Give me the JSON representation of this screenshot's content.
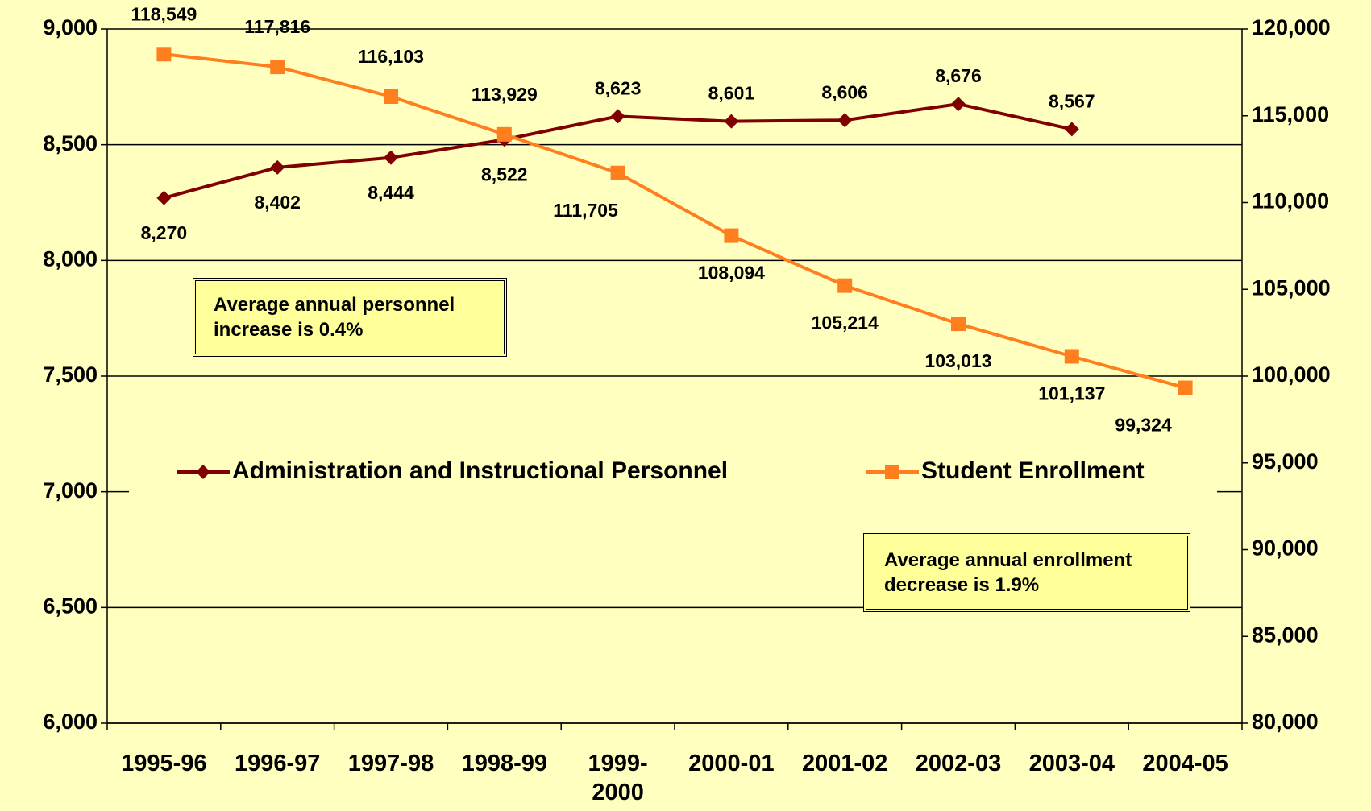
{
  "chart_data": {
    "type": "line",
    "categories": [
      "1995-96",
      "1996-97",
      "1997-98",
      "1998-99",
      "1999-2000",
      "2000-01",
      "2001-02",
      "2002-03",
      "2003-04",
      "2004-05"
    ],
    "series": [
      {
        "name": "Administration and Instructional Personnel",
        "color": "#800000",
        "values": [
          8270,
          8402,
          8444,
          8522,
          8623,
          8601,
          8606,
          8676,
          8567,
          null
        ],
        "value_labels": [
          "8,270",
          "8,402",
          "8,444",
          "8,522",
          "8,623",
          "8,601",
          "8,606",
          "8,676",
          "8,567",
          null
        ]
      },
      {
        "name": "Student Enrollment",
        "color": "#ff7f1f",
        "axis": "y2",
        "values": [
          118549,
          117816,
          116103,
          113929,
          111705,
          108094,
          105214,
          103013,
          101137,
          99324
        ],
        "value_labels": [
          "118,549",
          "117,816",
          "116,103",
          "113,929",
          "111,705",
          "108,094",
          "105,214",
          "103,013",
          "101,137",
          "99,324"
        ]
      }
    ],
    "ylim": [
      6000,
      9000
    ],
    "yticks": [
      {
        "value": 6000,
        "label": "6,000"
      },
      {
        "value": 6500,
        "label": "6,500"
      },
      {
        "value": 7000,
        "label": "7,000"
      },
      {
        "value": 7500,
        "label": "7,500"
      },
      {
        "value": 8000,
        "label": "8,000"
      },
      {
        "value": 8500,
        "label": "8,500"
      },
      {
        "value": 9000,
        "label": "9,000"
      }
    ],
    "y2lim": [
      80000,
      120000
    ],
    "y2ticks": [
      {
        "value": 80000,
        "label": "80,000"
      },
      {
        "value": 85000,
        "label": "85,000"
      },
      {
        "value": 90000,
        "label": "90,000"
      },
      {
        "value": 95000,
        "label": "95,000"
      },
      {
        "value": 100000,
        "label": "100,000"
      },
      {
        "value": 105000,
        "label": "105,000"
      },
      {
        "value": 110000,
        "label": "110,000"
      },
      {
        "value": 115000,
        "label": "115,000"
      },
      {
        "value": 120000,
        "label": "120,000"
      }
    ],
    "grid": true,
    "annotations": [
      "Average annual personnel increase is 0.4%",
      "Average annual enrollment decrease is 1.9%"
    ]
  }
}
